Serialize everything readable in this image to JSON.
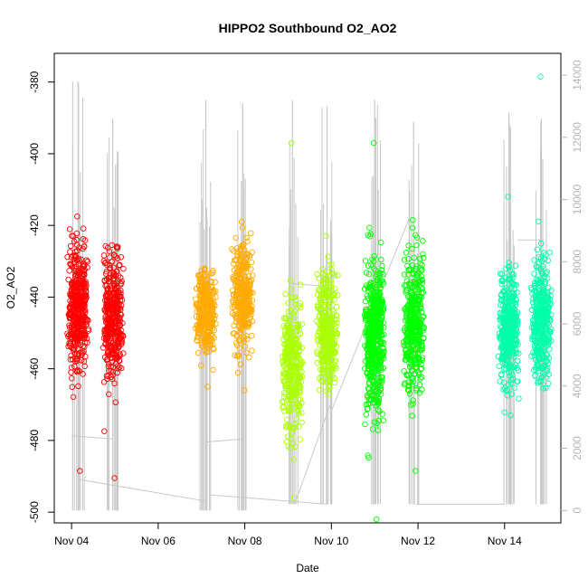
{
  "chart_data": {
    "type": "scatter",
    "title": "HIPPO2 Southbound O2_AO2",
    "xlabel": "Date",
    "ylabel": "O2_AO2",
    "x_ticks": [
      "Nov 04",
      "Nov 06",
      "Nov 08",
      "Nov 10",
      "Nov 12",
      "Nov 14"
    ],
    "y_ticks": [
      "-380",
      "-400",
      "-420",
      "-440",
      "-460",
      "-480",
      "-500"
    ],
    "y2_ticks": [
      "0",
      "2000",
      "4000",
      "6000",
      "8000",
      "10000",
      "12000",
      "14000"
    ],
    "xlim_days": [
      3.6,
      15.3
    ],
    "ylim": [
      -503,
      -372
    ],
    "y2lim": [
      -400,
      14700
    ],
    "grid": false,
    "legend": "none",
    "altitude_color": "#c8c8c8",
    "point_series": [
      {
        "x": 4.15,
        "color": "#ff0000",
        "center": -443,
        "spread": 8.5,
        "min": -488.5,
        "max": -417.5,
        "n": 420
      },
      {
        "x": 4.95,
        "color": "#ff0000",
        "center": -446,
        "spread": 9,
        "min": -490.5,
        "max": -425.5,
        "n": 380
      },
      {
        "x": 7.1,
        "color": "#ffaa00",
        "center": -444,
        "spread": 6.5,
        "min": -465,
        "max": -432,
        "n": 300
      },
      {
        "x": 7.95,
        "color": "#ffaa00",
        "center": -440,
        "spread": 7,
        "min": -466,
        "max": -419,
        "n": 320
      },
      {
        "x": 9.1,
        "color": "#aaff00",
        "center": -460,
        "spread": 9,
        "min": -496,
        "max": -397,
        "n": 320
      },
      {
        "x": 9.9,
        "color": "#aaff00",
        "center": -449,
        "spread": 8,
        "min": -467,
        "max": -423,
        "n": 320
      },
      {
        "x": 11.0,
        "color": "#00ff00",
        "center": -451,
        "spread": 10,
        "min": -502,
        "max": -397,
        "n": 500
      },
      {
        "x": 11.9,
        "color": "#00ff00",
        "center": -448,
        "spread": 9,
        "min": -488.5,
        "max": -418.5,
        "n": 380
      },
      {
        "x": 14.1,
        "color": "#00ffaa",
        "center": -449,
        "spread": 7.5,
        "min": -473,
        "max": -412,
        "n": 380
      },
      {
        "x": 14.85,
        "color": "#00ffaa",
        "center": -447,
        "spread": 8.5,
        "min": -465.5,
        "max": -378.5,
        "n": 360
      }
    ],
    "altitude_flights": [
      {
        "x": 4.15,
        "low": 0,
        "high": 13800
      },
      {
        "x": 4.95,
        "low": 0,
        "high": 12600
      },
      {
        "x": 7.1,
        "low": 0,
        "high": 13200
      },
      {
        "x": 7.95,
        "low": 0,
        "high": 13100
      },
      {
        "x": 9.1,
        "low": 200,
        "high": 13200
      },
      {
        "x": 9.9,
        "low": 200,
        "high": 13000
      },
      {
        "x": 11.0,
        "low": 200,
        "high": 13200
      },
      {
        "x": 11.9,
        "low": 200,
        "high": 12500
      },
      {
        "x": 14.1,
        "low": 200,
        "high": 12800
      },
      {
        "x": 14.85,
        "low": 200,
        "high": 12600
      }
    ],
    "altitude_transits": [
      {
        "x1": 4.0,
        "y1": 2400,
        "x2": 4.95,
        "y2": 2300
      },
      {
        "x1": 4.15,
        "y1": 1000,
        "x2": 7.1,
        "y2": 300
      },
      {
        "x1": 7.1,
        "y1": 2200,
        "x2": 7.95,
        "y2": 2300
      },
      {
        "x1": 7.2,
        "y1": 500,
        "x2": 9.9,
        "y2": 200
      },
      {
        "x1": 9.15,
        "y1": 200,
        "x2": 10.0,
        "y2": 3500
      },
      {
        "x1": 9.1,
        "y1": 7300,
        "x2": 9.9,
        "y2": 7200
      },
      {
        "x1": 10.0,
        "y1": 3200,
        "x2": 11.8,
        "y2": 9400
      },
      {
        "x1": 11.95,
        "y1": 200,
        "x2": 14.0,
        "y2": 200
      },
      {
        "x1": 14.3,
        "y1": 8700,
        "x2": 14.9,
        "y2": 8700
      }
    ]
  }
}
